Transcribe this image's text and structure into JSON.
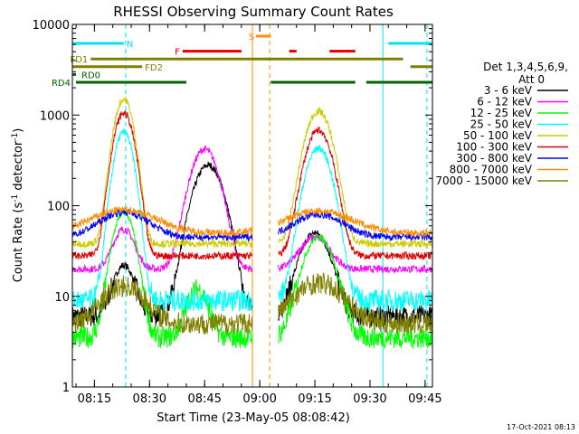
{
  "chart_data": {
    "type": "line",
    "title": "RHESSI Observing Summary Count Rates",
    "xlabel": "Start Time (23-May-05 08:08:42)",
    "ylabel_main": "Count Rate (s",
    "ylabel_sup1": "-1",
    "ylabel_mid": " detector",
    "ylabel_sup2": "-1",
    "ylabel_end": ")",
    "x_start_min": 489,
    "x_end_min": 587,
    "x_ticks": [
      {
        "min": 495,
        "label": "08:15"
      },
      {
        "min": 510,
        "label": "08:30"
      },
      {
        "min": 525,
        "label": "08:45"
      },
      {
        "min": 540,
        "label": "09:00"
      },
      {
        "min": 555,
        "label": "09:15"
      },
      {
        "min": 570,
        "label": "09:30"
      },
      {
        "min": 585,
        "label": "09:45"
      }
    ],
    "y_scale": "log",
    "ylim": [
      1,
      10000
    ],
    "y_ticks": [
      {
        "value": 1,
        "label": "1"
      },
      {
        "value": 10,
        "label": "10"
      },
      {
        "value": 100,
        "label": "100"
      },
      {
        "value": 1000,
        "label": "1000"
      },
      {
        "value": 10000,
        "label": "10000"
      }
    ],
    "legend_header": [
      "Det 1,3,4,5,6,9,",
      "Att 0"
    ],
    "legend_placement": "right",
    "timestamp": "17-Oct-2021 08:13",
    "flags": [
      {
        "label": "N",
        "color": "#00e5ee",
        "level": 0,
        "segments": [
          [
            489,
            503
          ],
          [
            575,
            587
          ]
        ]
      },
      {
        "label": "F",
        "color": "#e00000",
        "level": 1,
        "segments": [
          [
            519,
            535
          ],
          [
            548,
            550
          ],
          [
            559,
            566
          ]
        ]
      },
      {
        "label": "S",
        "color": "#ff8c00",
        "level": -1,
        "segments": [
          [
            539,
            543
          ]
        ]
      },
      {
        "label": "FD1",
        "color": "#808000",
        "level": 2,
        "segments": [
          [
            494,
            579
          ]
        ]
      },
      {
        "label": "FD2",
        "color": "#808000",
        "level": 3,
        "segments": [
          [
            489,
            508
          ],
          [
            581,
            587
          ]
        ]
      },
      {
        "label": "RD0",
        "color": "#006400",
        "level": 4,
        "segments": [
          [
            489,
            490
          ]
        ]
      },
      {
        "label": "RD4",
        "color": "#006400",
        "level": 5,
        "segments": [
          [
            490,
            520
          ],
          [
            543,
            566
          ],
          [
            569,
            587
          ]
        ]
      }
    ],
    "vlines": [
      {
        "min": 503.5,
        "color": "#00e5ee",
        "dash": true
      },
      {
        "min": 538,
        "color": "#ff8c00",
        "dash": false
      },
      {
        "min": 542.7,
        "color": "#ff8c00",
        "dash": true
      },
      {
        "min": 573.5,
        "color": "#00e5ee",
        "dash": false
      },
      {
        "min": 585.5,
        "color": "#00e5ee",
        "dash": true
      }
    ],
    "gaps": [
      [
        538,
        545
      ]
    ],
    "series": [
      {
        "name": "3 - 6 keV",
        "color": "#000000",
        "base": 6,
        "peaks": [
          [
            503,
            22,
            2.5
          ],
          [
            526,
            280,
            3.5
          ],
          [
            555,
            50,
            3.5
          ]
        ]
      },
      {
        "name": "6 - 12 keV",
        "color": "#ff00ff",
        "base": 20,
        "peaks": [
          [
            503,
            55,
            2.5
          ],
          [
            525,
            420,
            3.2
          ],
          [
            555,
            45,
            3.5
          ]
        ]
      },
      {
        "name": "12 - 25 keV",
        "color": "#00ff00",
        "base": 3.5,
        "peaks": [
          [
            503,
            85,
            2.5
          ],
          [
            523,
            12,
            2.5
          ],
          [
            556,
            45,
            3.5
          ]
        ]
      },
      {
        "name": "25 - 50 keV",
        "color": "#00ffff",
        "base": 9,
        "peaks": [
          [
            503,
            650,
            2.2
          ],
          [
            556,
            430,
            3
          ]
        ]
      },
      {
        "name": "50 - 100 keV",
        "color": "#cccc00",
        "base": 38,
        "peaks": [
          [
            503,
            1500,
            2.2
          ],
          [
            556,
            1100,
            3
          ]
        ]
      },
      {
        "name": "100 - 300 keV",
        "color": "#e00000",
        "base": 28,
        "peaks": [
          [
            503,
            1050,
            2.3
          ],
          [
            556,
            680,
            3
          ]
        ]
      },
      {
        "name": "300 - 800 keV",
        "color": "#0000ff",
        "base": 45,
        "peaks": [
          [
            503,
            85,
            6
          ],
          [
            556,
            80,
            6
          ]
        ]
      },
      {
        "name": "800 - 7000 keV",
        "color": "#ff8c00",
        "base": 50,
        "peaks": [
          [
            503,
            90,
            8
          ],
          [
            556,
            88,
            8
          ]
        ]
      },
      {
        "name": "7000 - 15000 keV",
        "color": "#808000",
        "base": 5,
        "peaks": [
          [
            503,
            13,
            5
          ],
          [
            556,
            14,
            6
          ]
        ]
      }
    ]
  }
}
